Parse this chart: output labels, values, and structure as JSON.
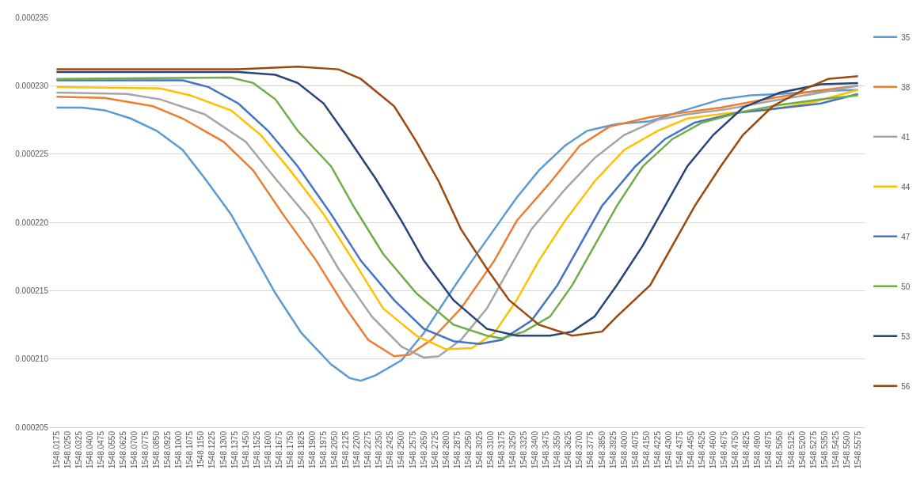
{
  "chart_data": {
    "type": "line",
    "series": [
      {
        "name": "35",
        "color": "#5b9bd5",
        "x": [
          1548.0175,
          1548.035,
          1548.05,
          1548.0675,
          1548.085,
          1548.1025,
          1548.1175,
          1548.135,
          1548.15,
          1548.165,
          1548.1825,
          1548.2025,
          1548.215,
          1548.2225,
          1548.2325,
          1548.25,
          1548.265,
          1548.2825,
          1548.2975,
          1548.3125,
          1548.3275,
          1548.3425,
          1548.36,
          1548.375,
          1548.395,
          1548.4175,
          1548.4375,
          1548.465,
          1548.485,
          1548.505,
          1548.5325,
          1548.5575
        ],
        "values": [
          0.0002284,
          0.0002284,
          0.0002282,
          0.0002276,
          0.0002267,
          0.0002253,
          0.0002232,
          0.0002206,
          0.0002177,
          0.0002148,
          0.0002119,
          0.0002096,
          0.0002086,
          0.0002084,
          0.0002088,
          0.0002099,
          0.0002119,
          0.0002148,
          0.0002172,
          0.0002195,
          0.0002218,
          0.0002238,
          0.0002256,
          0.0002267,
          0.0002272,
          0.0002274,
          0.0002281,
          0.000229,
          0.0002293,
          0.0002294,
          0.0002296,
          0.0002297
        ]
      },
      {
        "name": "38",
        "color": "#ed7d31",
        "x": [
          1548.0175,
          1548.05,
          1548.0825,
          1548.1025,
          1548.13,
          1548.15,
          1548.17,
          1548.1925,
          1548.2125,
          1548.2275,
          1548.245,
          1548.255,
          1548.27,
          1548.29,
          1548.3125,
          1548.3275,
          1548.35,
          1548.37,
          1548.39,
          1548.4175,
          1548.4375,
          1548.465,
          1548.495,
          1548.5275,
          1548.5575
        ],
        "values": [
          0.0002292,
          0.0002291,
          0.0002285,
          0.0002276,
          0.0002259,
          0.0002238,
          0.0002206,
          0.0002172,
          0.0002137,
          0.0002114,
          0.0002102,
          0.0002103,
          0.0002114,
          0.0002137,
          0.0002172,
          0.0002201,
          0.0002229,
          0.0002256,
          0.000227,
          0.0002277,
          0.000228,
          0.0002284,
          0.000229,
          0.0002296,
          0.00023
        ]
      },
      {
        "name": "41",
        "color": "#a5a5a5",
        "x": [
          1548.0175,
          1548.065,
          1548.0875,
          1548.1175,
          1548.145,
          1548.165,
          1548.1875,
          1548.2075,
          1548.23,
          1548.25,
          1548.265,
          1548.275,
          1548.29,
          1548.3075,
          1548.3225,
          1548.3375,
          1548.36,
          1548.38,
          1548.4,
          1548.4225,
          1548.4425,
          1548.47,
          1548.495,
          1548.5275,
          1548.5575
        ],
        "values": [
          0.0002295,
          0.0002294,
          0.000229,
          0.0002279,
          0.0002259,
          0.0002232,
          0.0002203,
          0.0002166,
          0.0002131,
          0.0002109,
          0.0002101,
          0.0002102,
          0.0002114,
          0.0002137,
          0.0002166,
          0.0002195,
          0.0002224,
          0.0002247,
          0.0002264,
          0.0002275,
          0.0002279,
          0.0002283,
          0.0002288,
          0.0002294,
          0.00023
        ]
      },
      {
        "name": "44",
        "color": "#ffc000",
        "x": [
          1548.0175,
          1548.0875,
          1548.1075,
          1548.135,
          1548.155,
          1548.175,
          1548.1975,
          1548.2175,
          1548.2375,
          1548.26,
          1548.28,
          1548.2975,
          1548.3125,
          1548.3275,
          1548.3425,
          1548.36,
          1548.38,
          1548.4,
          1548.4225,
          1548.4425,
          1548.47,
          1548.495,
          1548.5275,
          1548.5575
        ],
        "values": [
          0.0002299,
          0.0002298,
          0.0002293,
          0.0002282,
          0.0002264,
          0.0002238,
          0.0002206,
          0.0002172,
          0.0002137,
          0.0002117,
          0.0002107,
          0.0002108,
          0.0002119,
          0.0002143,
          0.0002172,
          0.0002201,
          0.000223,
          0.0002253,
          0.0002267,
          0.0002276,
          0.000228,
          0.0002282,
          0.0002288,
          0.0002297
        ]
      },
      {
        "name": "47",
        "color": "#4472c4",
        "x": [
          1548.0175,
          1548.1025,
          1548.12,
          1548.14,
          1548.16,
          1548.18,
          1548.2025,
          1548.2225,
          1548.245,
          1548.265,
          1548.285,
          1548.3025,
          1548.3175,
          1548.3375,
          1548.355,
          1548.37,
          1548.385,
          1548.4075,
          1548.4275,
          1548.4475,
          1548.475,
          1548.5,
          1548.5325,
          1548.5575
        ],
        "values": [
          0.0002304,
          0.0002304,
          0.0002299,
          0.0002287,
          0.0002267,
          0.0002241,
          0.0002206,
          0.0002172,
          0.0002143,
          0.0002122,
          0.0002113,
          0.0002111,
          0.0002114,
          0.0002128,
          0.0002154,
          0.0002183,
          0.0002212,
          0.0002241,
          0.0002261,
          0.0002273,
          0.000228,
          0.0002283,
          0.0002287,
          0.0002294
        ]
      },
      {
        "name": "50",
        "color": "#70ad47",
        "x": [
          1548.0175,
          1548.135,
          1548.15,
          1548.165,
          1548.18,
          1548.2025,
          1548.2175,
          1548.2375,
          1548.26,
          1548.285,
          1548.3075,
          1548.3175,
          1548.3325,
          1548.35,
          1548.365,
          1548.38,
          1548.395,
          1548.4125,
          1548.4325,
          1548.4525,
          1548.48,
          1548.505,
          1548.5325,
          1548.5575
        ],
        "values": [
          0.0002305,
          0.0002306,
          0.0002302,
          0.000229,
          0.0002267,
          0.0002241,
          0.0002212,
          0.0002177,
          0.0002148,
          0.0002125,
          0.0002117,
          0.0002115,
          0.000212,
          0.0002131,
          0.0002154,
          0.0002183,
          0.0002212,
          0.0002241,
          0.0002261,
          0.0002273,
          0.0002281,
          0.0002286,
          0.000229,
          0.0002293
        ]
      },
      {
        "name": "53",
        "color": "#264478",
        "x": [
          1548.0175,
          1548.14,
          1548.165,
          1548.18,
          1548.1975,
          1548.2125,
          1548.2325,
          1548.25,
          1548.265,
          1548.285,
          1548.3075,
          1548.3275,
          1548.35,
          1548.365,
          1548.38,
          1548.395,
          1548.4125,
          1548.4275,
          1548.4425,
          1548.46,
          1548.48,
          1548.505,
          1548.5325,
          1548.5575
        ],
        "values": [
          0.000231,
          0.000231,
          0.0002308,
          0.0002302,
          0.0002287,
          0.0002264,
          0.0002232,
          0.0002201,
          0.0002172,
          0.0002143,
          0.0002122,
          0.0002117,
          0.0002117,
          0.000212,
          0.0002131,
          0.0002154,
          0.0002183,
          0.0002212,
          0.0002241,
          0.0002264,
          0.0002284,
          0.0002295,
          0.0002301,
          0.0002302
        ]
      },
      {
        "name": "56",
        "color": "#9e480e",
        "x": [
          1548.0175,
          1548.14,
          1548.18,
          1548.2075,
          1548.2225,
          1548.245,
          1548.26,
          1548.275,
          1548.29,
          1548.3075,
          1548.3225,
          1548.3425,
          1548.365,
          1548.385,
          1548.395,
          1548.4175,
          1548.4325,
          1548.4475,
          1548.465,
          1548.48,
          1548.5,
          1548.5225,
          1548.5375,
          1548.5575
        ],
        "values": [
          0.0002312,
          0.0002312,
          0.0002314,
          0.0002312,
          0.0002305,
          0.0002285,
          0.0002259,
          0.000223,
          0.0002195,
          0.0002166,
          0.0002143,
          0.0002125,
          0.0002117,
          0.000212,
          0.0002131,
          0.0002154,
          0.0002183,
          0.0002212,
          0.0002241,
          0.0002264,
          0.0002285,
          0.0002298,
          0.0002305,
          0.0002307
        ]
      }
    ],
    "xlim": [
      1548.0125,
      1548.5625
    ],
    "xticks": [
      1548.0175,
      {
        "value": 1548.025,
        "label": "1548.0250"
      },
      1548.0325,
      {
        "value": 1548.04,
        "label": "1548.0400"
      },
      1548.0475,
      {
        "value": 1548.055,
        "label": "1548.0550"
      },
      1548.0625,
      {
        "value": 1548.07,
        "label": "1548.0700"
      },
      1548.0775,
      {
        "value": 1548.085,
        "label": "1548.0850"
      },
      1548.0925,
      {
        "value": 1548.1,
        "label": "1548.1000"
      },
      1548.1075,
      {
        "value": 1548.115,
        "label": "1548.1150"
      },
      1548.1225,
      {
        "value": 1548.13,
        "label": "1548.1300"
      },
      1548.1375,
      {
        "value": 1548.145,
        "label": "1548.1450"
      },
      1548.1525,
      {
        "value": 1548.16,
        "label": "1548.1600"
      },
      1548.1675,
      {
        "value": 1548.175,
        "label": "1548.1750"
      },
      1548.1825,
      {
        "value": 1548.19,
        "label": "1548.1900"
      },
      1548.1975,
      {
        "value": 1548.205,
        "label": "1548.2050"
      },
      1548.2125,
      {
        "value": 1548.22,
        "label": "1548.2200"
      },
      1548.2275,
      {
        "value": 1548.235,
        "label": "1548.2350"
      },
      1548.2425,
      {
        "value": 1548.25,
        "label": "1548.2500"
      },
      1548.2575,
      {
        "value": 1548.265,
        "label": "1548.2650"
      },
      1548.2725,
      {
        "value": 1548.28,
        "label": "1548.2800"
      },
      1548.2875,
      {
        "value": 1548.295,
        "label": "1548.2950"
      },
      1548.3025,
      {
        "value": 1548.31,
        "label": "1548.3100"
      },
      1548.3175,
      {
        "value": 1548.325,
        "label": "1548.3250"
      },
      1548.3325,
      {
        "value": 1548.34,
        "label": "1548.3400"
      },
      1548.3475,
      {
        "value": 1548.355,
        "label": "1548.3550"
      },
      1548.3625,
      {
        "value": 1548.37,
        "label": "1548.3700"
      },
      1548.3775,
      {
        "value": 1548.385,
        "label": "1548.3850"
      },
      1548.3925,
      {
        "value": 1548.4,
        "label": "1548.4000"
      },
      1548.4075,
      {
        "value": 1548.415,
        "label": "1548.4150"
      },
      1548.4225,
      {
        "value": 1548.43,
        "label": "1548.4300"
      },
      1548.4375,
      {
        "value": 1548.445,
        "label": "1548.4450"
      },
      1548.4525,
      {
        "value": 1548.46,
        "label": "1548.4600"
      },
      1548.4675,
      {
        "value": 1548.475,
        "label": "1548.4750"
      },
      1548.4825,
      {
        "value": 1548.49,
        "label": "1548.4900"
      },
      1548.4975,
      {
        "value": 1548.505,
        "label": "1548.5050"
      },
      1548.5125,
      {
        "value": 1548.52,
        "label": "1548.5200"
      },
      1548.5275,
      {
        "value": 1548.535,
        "label": "1548.5350"
      },
      1548.5425,
      {
        "value": 1548.55,
        "label": "1548.5500"
      },
      1548.5575
    ],
    "ylim": [
      0.000205,
      0.000235
    ],
    "yticks": [
      0.000205,
      {
        "value": 0.00021,
        "label": "0.000210"
      },
      0.000215,
      {
        "value": 0.00022,
        "label": "0.000220"
      },
      0.000225,
      {
        "value": 0.00023,
        "label": "0.000230"
      },
      0.000235
    ],
    "grid": "y",
    "legend": "right",
    "marker": "none",
    "line_style": "solid"
  }
}
